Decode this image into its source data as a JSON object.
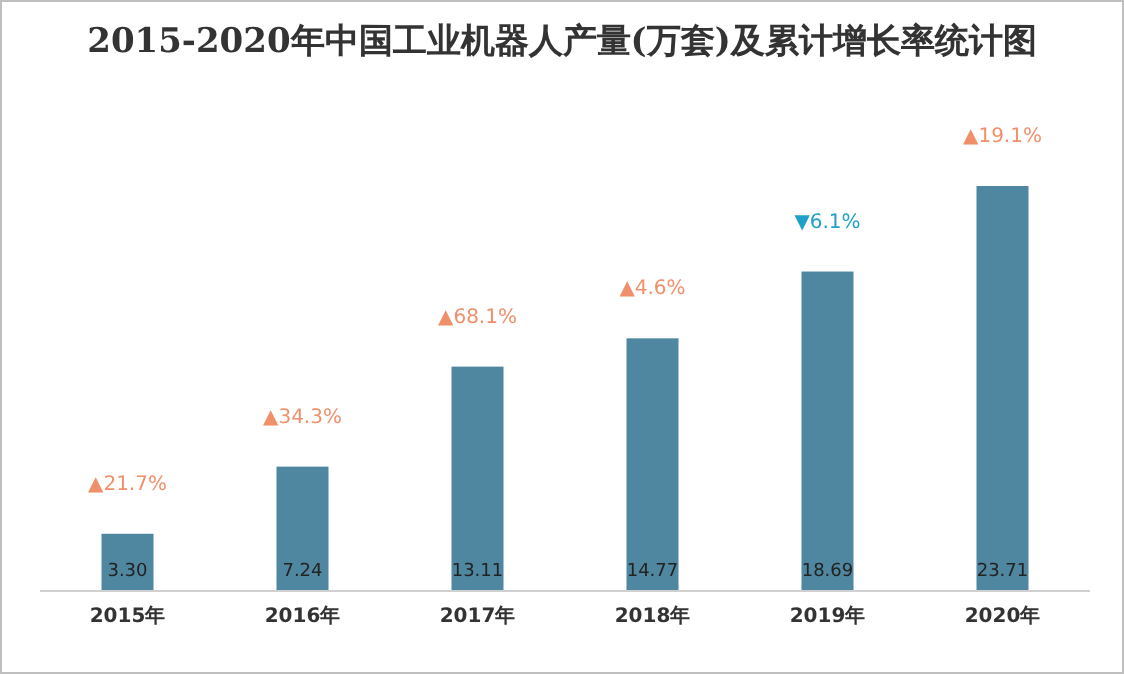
{
  "chart_data": {
    "type": "bar",
    "title": "2015-2020年中国工业机器人产量(万套)及累计增长率统计图",
    "categories": [
      "2015年",
      "2016年",
      "2017年",
      "2018年",
      "2019年",
      "2020年"
    ],
    "values": [
      3.3,
      7.24,
      13.11,
      14.77,
      18.69,
      23.71
    ],
    "color": "#4f86a0",
    "value_labels": [
      "3.30",
      "7.24",
      "13.11",
      "14.77",
      "18.69",
      "23.71"
    ],
    "annotations": [
      "▲21.7%",
      "▲34.3%",
      "▲68.1%",
      "▲4.6%",
      "▼6.1%",
      "▲19.1%"
    ]
  }
}
